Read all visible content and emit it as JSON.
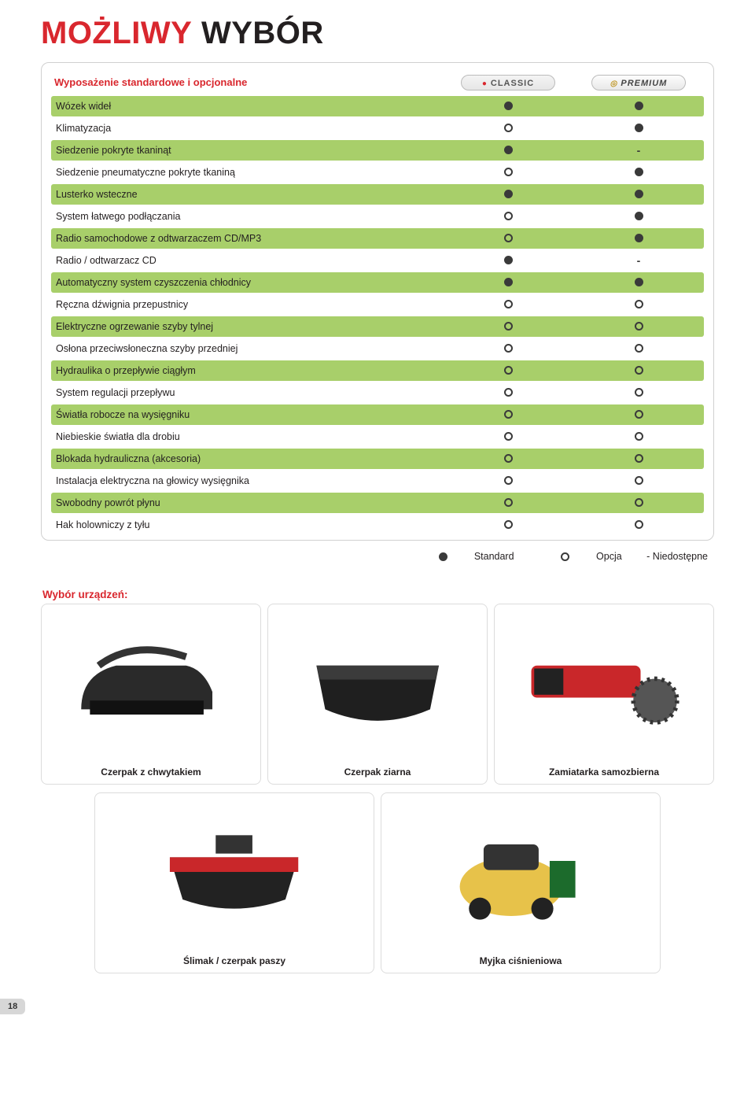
{
  "title_red": "MOŻLIWY",
  "title_black": "WYBÓR",
  "header_label": "Wyposażenie standardowe i opcjonalne",
  "col_classic": "CLASSIC",
  "col_premium": "PREMIUM",
  "colors": {
    "accent_red": "#d9272e",
    "row_green": "#a8cf6a",
    "dot": "#3a3a3a"
  },
  "rows": [
    {
      "label": "Wózek wideł",
      "classic": "filled",
      "premium": "filled",
      "band": "green"
    },
    {
      "label": "Klimatyzacja",
      "classic": "open",
      "premium": "filled",
      "band": "white"
    },
    {
      "label": "Siedzenie pokryte tkaninąt",
      "classic": "filled",
      "premium": "dash",
      "band": "green"
    },
    {
      "label": "Siedzenie pneumatyczne pokryte tkaniną",
      "classic": "open",
      "premium": "filled",
      "band": "white"
    },
    {
      "label": "Lusterko wsteczne",
      "classic": "filled",
      "premium": "filled",
      "band": "green"
    },
    {
      "label": "System łatwego podłączania",
      "classic": "open",
      "premium": "filled",
      "band": "white"
    },
    {
      "label": "Radio samochodowe z odtwarzaczem CD/MP3",
      "classic": "open",
      "premium": "filled",
      "band": "green"
    },
    {
      "label": "Radio / odtwarzacz CD",
      "classic": "filled",
      "premium": "dash",
      "band": "white"
    },
    {
      "label": "Automatyczny system czyszczenia chłodnicy",
      "classic": "filled",
      "premium": "filled",
      "band": "green"
    },
    {
      "label": "Ręczna dźwignia przepustnicy",
      "classic": "open",
      "premium": "open",
      "band": "white"
    },
    {
      "label": "Elektryczne ogrzewanie szyby tylnej",
      "classic": "open",
      "premium": "open",
      "band": "green"
    },
    {
      "label": "Osłona przeciwsłoneczna szyby przedniej",
      "classic": "open",
      "premium": "open",
      "band": "white"
    },
    {
      "label": "Hydraulika o przepływie ciągłym",
      "classic": "open",
      "premium": "open",
      "band": "green"
    },
    {
      "label": "System regulacji przepływu",
      "classic": "open",
      "premium": "open",
      "band": "white"
    },
    {
      "label": "Światła robocze na wysięgniku",
      "classic": "open",
      "premium": "open",
      "band": "green"
    },
    {
      "label": "Niebieskie światła dla drobiu",
      "classic": "open",
      "premium": "open",
      "band": "white"
    },
    {
      "label": "Blokada hydrauliczna (akcesoria)",
      "classic": "open",
      "premium": "open",
      "band": "green"
    },
    {
      "label": "Instalacja elektryczna na głowicy wysięgnika",
      "classic": "open",
      "premium": "open",
      "band": "white"
    },
    {
      "label": "Swobodny powrót płynu",
      "classic": "open",
      "premium": "open",
      "band": "green"
    },
    {
      "label": "Hak holowniczy z tyłu",
      "classic": "open",
      "premium": "open",
      "band": "white"
    }
  ],
  "legend": {
    "standard": "Standard",
    "option": "Opcja",
    "na": "- Niedostępne"
  },
  "devices_header": "Wybór urządzeń:",
  "devices_top": [
    {
      "label": "Czerpak z chwytakiem",
      "thumb": "grapple"
    },
    {
      "label": "Czerpak ziarna",
      "thumb": "bucket"
    },
    {
      "label": "Zamiatarka samozbierna",
      "thumb": "sweeper"
    }
  ],
  "devices_bottom": [
    {
      "label": "Ślimak / czerpak paszy",
      "thumb": "auger"
    },
    {
      "label": "Myjka ciśnieniowa",
      "thumb": "washer"
    }
  ],
  "page_number": "18"
}
